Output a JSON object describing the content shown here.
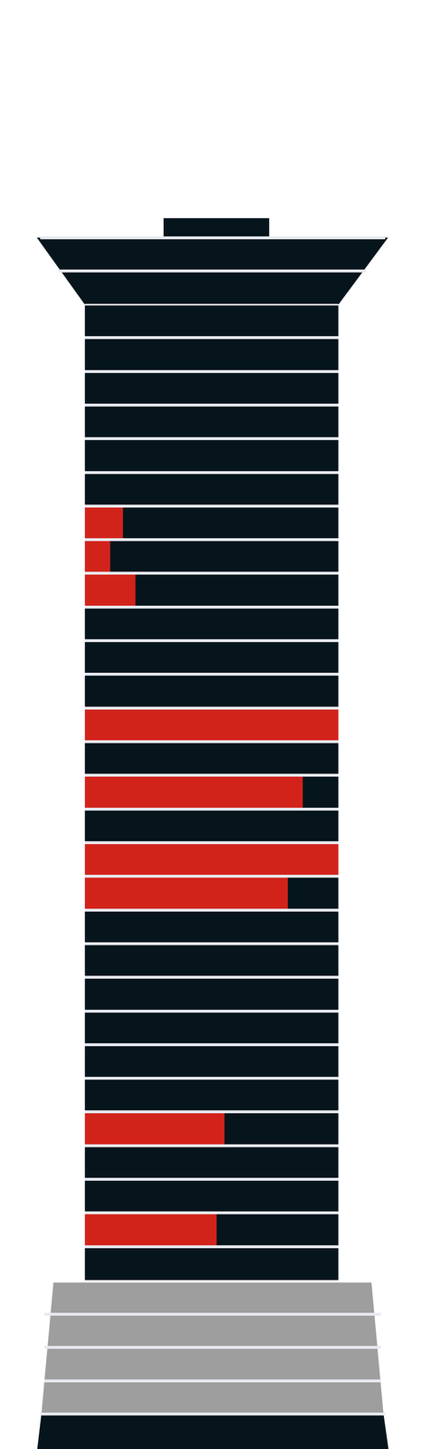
{
  "chart_data": {
    "type": "bar",
    "orientation": "horizontal",
    "categories": [
      null,
      null,
      null,
      null,
      null,
      null,
      null,
      null,
      null,
      null,
      null,
      null,
      null,
      null,
      null,
      null,
      null,
      null,
      null,
      null,
      null,
      null,
      null,
      null,
      null,
      null,
      null,
      null,
      null
    ],
    "values": [
      0,
      0,
      0,
      0,
      0,
      0,
      15,
      10,
      20,
      0,
      0,
      0,
      100,
      0,
      86,
      0,
      100,
      80,
      0,
      0,
      0,
      0,
      0,
      0,
      55,
      0,
      0,
      52,
      0
    ],
    "color": "#d2231b",
    "xlim": [
      0,
      100
    ],
    "tick_labels": false
  }
}
